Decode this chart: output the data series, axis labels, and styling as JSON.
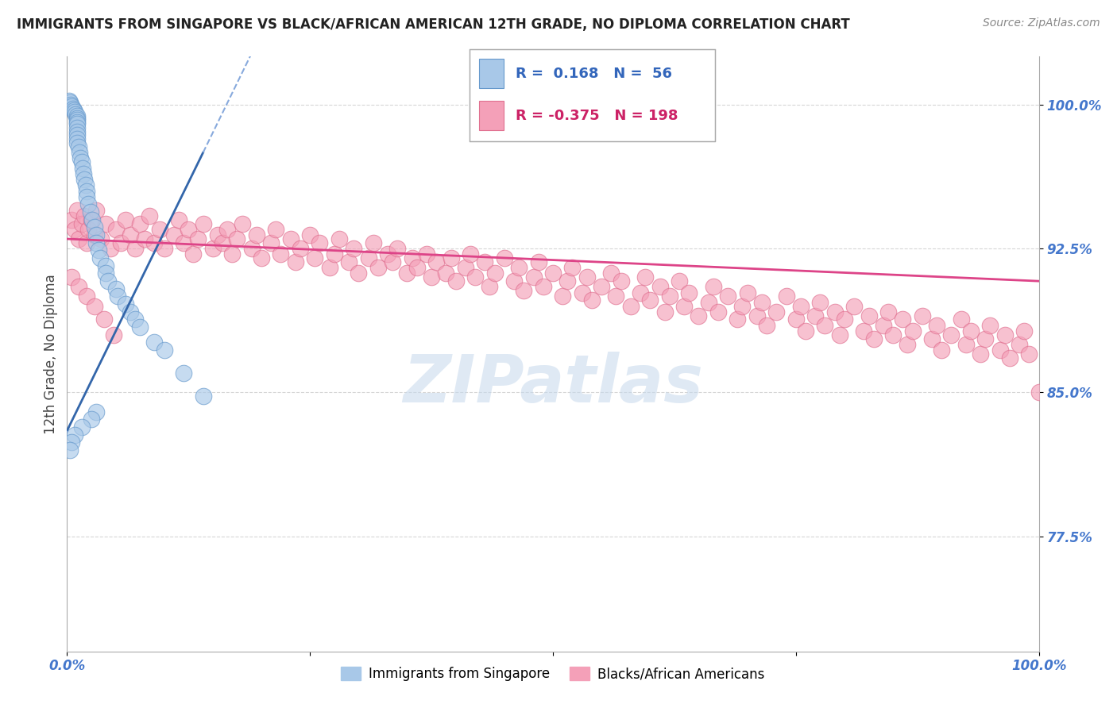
{
  "title": "IMMIGRANTS FROM SINGAPORE VS BLACK/AFRICAN AMERICAN 12TH GRADE, NO DIPLOMA CORRELATION CHART",
  "source_text": "Source: ZipAtlas.com",
  "ylabel": "12th Grade, No Diploma",
  "watermark": "ZIPatlas",
  "legend_blue_r": "0.168",
  "legend_blue_n": "56",
  "legend_pink_r": "-0.375",
  "legend_pink_n": "198",
  "legend_label_blue": "Immigrants from Singapore",
  "legend_label_pink": "Blacks/African Americans",
  "xlim": [
    0.0,
    1.0
  ],
  "ylim": [
    0.715,
    1.025
  ],
  "yticks": [
    0.775,
    0.85,
    0.925,
    1.0
  ],
  "ytick_labels": [
    "77.5%",
    "85.0%",
    "92.5%",
    "100.0%"
  ],
  "xtick_labels_left": [
    "0.0%"
  ],
  "xtick_labels_right": [
    "100.0%"
  ],
  "blue_color": "#a8c8e8",
  "blue_edge_color": "#6699cc",
  "pink_color": "#f4a0b8",
  "pink_edge_color": "#e07090",
  "blue_line_color": "#3366aa",
  "blue_line_dash_color": "#88aadd",
  "pink_line_color": "#dd4488",
  "background_color": "#ffffff",
  "grid_color": "#cccccc",
  "tick_color": "#4477cc",
  "title_color": "#222222",
  "ylabel_color": "#444444",
  "blue_points_x": [
    0.002,
    0.003,
    0.004,
    0.005,
    0.006,
    0.007,
    0.008,
    0.009,
    0.01,
    0.01,
    0.01,
    0.01,
    0.01,
    0.01,
    0.01,
    0.01,
    0.01,
    0.01,
    0.012,
    0.013,
    0.014,
    0.015,
    0.016,
    0.017,
    0.018,
    0.019,
    0.02,
    0.02,
    0.022,
    0.024,
    0.026,
    0.028,
    0.03,
    0.03,
    0.032,
    0.034,
    0.04,
    0.04,
    0.042,
    0.05,
    0.052,
    0.06,
    0.065,
    0.07,
    0.075,
    0.09,
    0.1,
    0.12,
    0.14,
    0.03,
    0.025,
    0.015,
    0.008,
    0.005,
    0.003
  ],
  "blue_points_y": [
    1.002,
    1.001,
    1.0,
    0.999,
    0.998,
    0.997,
    0.996,
    0.995,
    0.994,
    0.993,
    0.992,
    0.991,
    0.99,
    0.988,
    0.986,
    0.984,
    0.982,
    0.98,
    0.978,
    0.975,
    0.972,
    0.97,
    0.967,
    0.964,
    0.961,
    0.958,
    0.955,
    0.952,
    0.948,
    0.944,
    0.94,
    0.936,
    0.932,
    0.928,
    0.924,
    0.92,
    0.916,
    0.912,
    0.908,
    0.904,
    0.9,
    0.896,
    0.892,
    0.888,
    0.884,
    0.876,
    0.872,
    0.86,
    0.848,
    0.84,
    0.836,
    0.832,
    0.828,
    0.824,
    0.82
  ],
  "pink_points_x": [
    0.005,
    0.008,
    0.01,
    0.012,
    0.015,
    0.018,
    0.02,
    0.022,
    0.025,
    0.028,
    0.03,
    0.035,
    0.04,
    0.045,
    0.05,
    0.055,
    0.06,
    0.065,
    0.07,
    0.075,
    0.08,
    0.085,
    0.09,
    0.095,
    0.1,
    0.11,
    0.115,
    0.12,
    0.125,
    0.13,
    0.135,
    0.14,
    0.15,
    0.155,
    0.16,
    0.165,
    0.17,
    0.175,
    0.18,
    0.19,
    0.195,
    0.2,
    0.21,
    0.215,
    0.22,
    0.23,
    0.235,
    0.24,
    0.25,
    0.255,
    0.26,
    0.27,
    0.275,
    0.28,
    0.29,
    0.295,
    0.3,
    0.31,
    0.315,
    0.32,
    0.33,
    0.335,
    0.34,
    0.35,
    0.355,
    0.36,
    0.37,
    0.375,
    0.38,
    0.39,
    0.395,
    0.4,
    0.41,
    0.415,
    0.42,
    0.43,
    0.435,
    0.44,
    0.45,
    0.46,
    0.465,
    0.47,
    0.48,
    0.485,
    0.49,
    0.5,
    0.51,
    0.515,
    0.52,
    0.53,
    0.535,
    0.54,
    0.55,
    0.56,
    0.565,
    0.57,
    0.58,
    0.59,
    0.595,
    0.6,
    0.61,
    0.615,
    0.62,
    0.63,
    0.635,
    0.64,
    0.65,
    0.66,
    0.665,
    0.67,
    0.68,
    0.69,
    0.695,
    0.7,
    0.71,
    0.715,
    0.72,
    0.73,
    0.74,
    0.75,
    0.755,
    0.76,
    0.77,
    0.775,
    0.78,
    0.79,
    0.795,
    0.8,
    0.81,
    0.82,
    0.825,
    0.83,
    0.84,
    0.845,
    0.85,
    0.86,
    0.865,
    0.87,
    0.88,
    0.89,
    0.895,
    0.9,
    0.91,
    0.92,
    0.925,
    0.93,
    0.94,
    0.945,
    0.95,
    0.96,
    0.965,
    0.97,
    0.98,
    0.985,
    0.99,
    1.0,
    0.005,
    0.012,
    0.02,
    0.028,
    0.038,
    0.048
  ],
  "pink_points_y": [
    0.94,
    0.935,
    0.945,
    0.93,
    0.938,
    0.942,
    0.928,
    0.935,
    0.94,
    0.932,
    0.945,
    0.93,
    0.938,
    0.925,
    0.935,
    0.928,
    0.94,
    0.932,
    0.925,
    0.938,
    0.93,
    0.942,
    0.928,
    0.935,
    0.925,
    0.932,
    0.94,
    0.928,
    0.935,
    0.922,
    0.93,
    0.938,
    0.925,
    0.932,
    0.928,
    0.935,
    0.922,
    0.93,
    0.938,
    0.925,
    0.932,
    0.92,
    0.928,
    0.935,
    0.922,
    0.93,
    0.918,
    0.925,
    0.932,
    0.92,
    0.928,
    0.915,
    0.922,
    0.93,
    0.918,
    0.925,
    0.912,
    0.92,
    0.928,
    0.915,
    0.922,
    0.918,
    0.925,
    0.912,
    0.92,
    0.915,
    0.922,
    0.91,
    0.918,
    0.912,
    0.92,
    0.908,
    0.915,
    0.922,
    0.91,
    0.918,
    0.905,
    0.912,
    0.92,
    0.908,
    0.915,
    0.903,
    0.91,
    0.918,
    0.905,
    0.912,
    0.9,
    0.908,
    0.915,
    0.902,
    0.91,
    0.898,
    0.905,
    0.912,
    0.9,
    0.908,
    0.895,
    0.902,
    0.91,
    0.898,
    0.905,
    0.892,
    0.9,
    0.908,
    0.895,
    0.902,
    0.89,
    0.897,
    0.905,
    0.892,
    0.9,
    0.888,
    0.895,
    0.902,
    0.89,
    0.897,
    0.885,
    0.892,
    0.9,
    0.888,
    0.895,
    0.882,
    0.89,
    0.897,
    0.885,
    0.892,
    0.88,
    0.888,
    0.895,
    0.882,
    0.89,
    0.878,
    0.885,
    0.892,
    0.88,
    0.888,
    0.875,
    0.882,
    0.89,
    0.878,
    0.885,
    0.872,
    0.88,
    0.888,
    0.875,
    0.882,
    0.87,
    0.878,
    0.885,
    0.872,
    0.88,
    0.868,
    0.875,
    0.882,
    0.87,
    0.85,
    0.91,
    0.905,
    0.9,
    0.895,
    0.888,
    0.88
  ],
  "pink_trend_x0": 0.0,
  "pink_trend_y0": 0.93,
  "pink_trend_x1": 1.0,
  "pink_trend_y1": 0.908,
  "blue_trend_solid_x0": 0.0,
  "blue_trend_solid_y0": 0.83,
  "blue_trend_solid_x1": 0.14,
  "blue_trend_solid_y1": 0.975,
  "blue_trend_dash_x0": 0.0,
  "blue_trend_dash_y0": 0.83,
  "blue_trend_dash_x1": 0.14,
  "blue_trend_dash_y1": 0.975
}
